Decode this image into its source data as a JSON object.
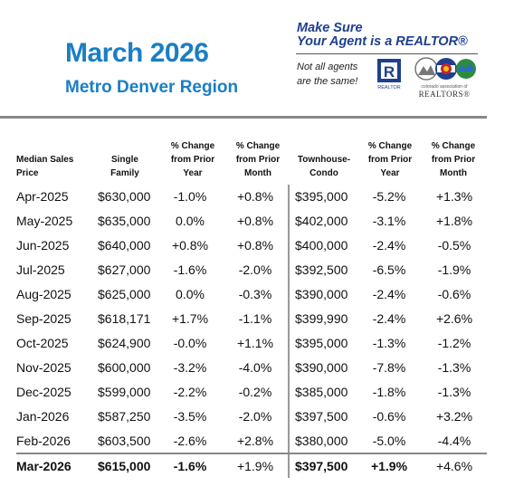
{
  "header": {
    "title": "March 2026",
    "subtitle": "Metro Denver Region"
  },
  "promo": {
    "line1": "Make Sure",
    "line2": "Your Agent is a REALTOR®",
    "note_line1": "Not all agents",
    "note_line2": "are the same!",
    "realtor_mark_letter": "R",
    "realtor_mark_caption": "REALTOR",
    "association_small": "colorado association of",
    "association_name": "REALTORS®",
    "colors": {
      "accent": "#1a7ec4",
      "navy": "#1f3f8f"
    }
  },
  "table": {
    "columns": [
      [
        "Median Sales",
        "Price"
      ],
      [
        "Single",
        "Family"
      ],
      [
        "% Change",
        "from Prior",
        "Year"
      ],
      [
        "% Change",
        "from Prior",
        "Month"
      ],
      [
        "Townhouse-",
        "Condo"
      ],
      [
        "% Change",
        "from Prior",
        "Year"
      ],
      [
        "% Change",
        "from Prior",
        "Month"
      ]
    ],
    "rows": [
      [
        "Apr-2025",
        "$630,000",
        "-1.0%",
        "+0.8%",
        "$395,000",
        "-5.2%",
        "+1.3%"
      ],
      [
        "May-2025",
        "$635,000",
        "0.0%",
        "+0.8%",
        "$402,000",
        "-3.1%",
        "+1.8%"
      ],
      [
        "Jun-2025",
        "$640,000",
        "+0.8%",
        "+0.8%",
        "$400,000",
        "-2.4%",
        "-0.5%"
      ],
      [
        "Jul-2025",
        "$627,000",
        "-1.6%",
        "-2.0%",
        "$392,500",
        "-6.5%",
        "-1.9%"
      ],
      [
        "Aug-2025",
        "$625,000",
        "0.0%",
        "-0.3%",
        "$390,000",
        "-2.4%",
        "-0.6%"
      ],
      [
        "Sep-2025",
        "$618,171",
        "+1.7%",
        "-1.1%",
        "$399,990",
        "-2.4%",
        "+2.6%"
      ],
      [
        "Oct-2025",
        "$624,900",
        "-0.0%",
        "+1.1%",
        "$395,000",
        "-1.3%",
        "-1.2%"
      ],
      [
        "Nov-2025",
        "$600,000",
        "-3.2%",
        "-4.0%",
        "$390,000",
        "-7.8%",
        "-1.3%"
      ],
      [
        "Dec-2025",
        "$599,000",
        "-2.2%",
        "-0.2%",
        "$385,000",
        "-1.8%",
        "-1.3%"
      ],
      [
        "Jan-2026",
        "$587,250",
        "-3.5%",
        "-2.0%",
        "$397,500",
        "-0.6%",
        "+3.2%"
      ],
      [
        "Feb-2026",
        "$603,500",
        "-2.6%",
        "+2.8%",
        "$380,000",
        "-5.0%",
        "-4.4%"
      ],
      [
        "Mar-2026",
        "$615,000",
        "-1.6%",
        "+1.9%",
        "$397,500",
        "+1.9%",
        "+4.6%"
      ]
    ]
  }
}
